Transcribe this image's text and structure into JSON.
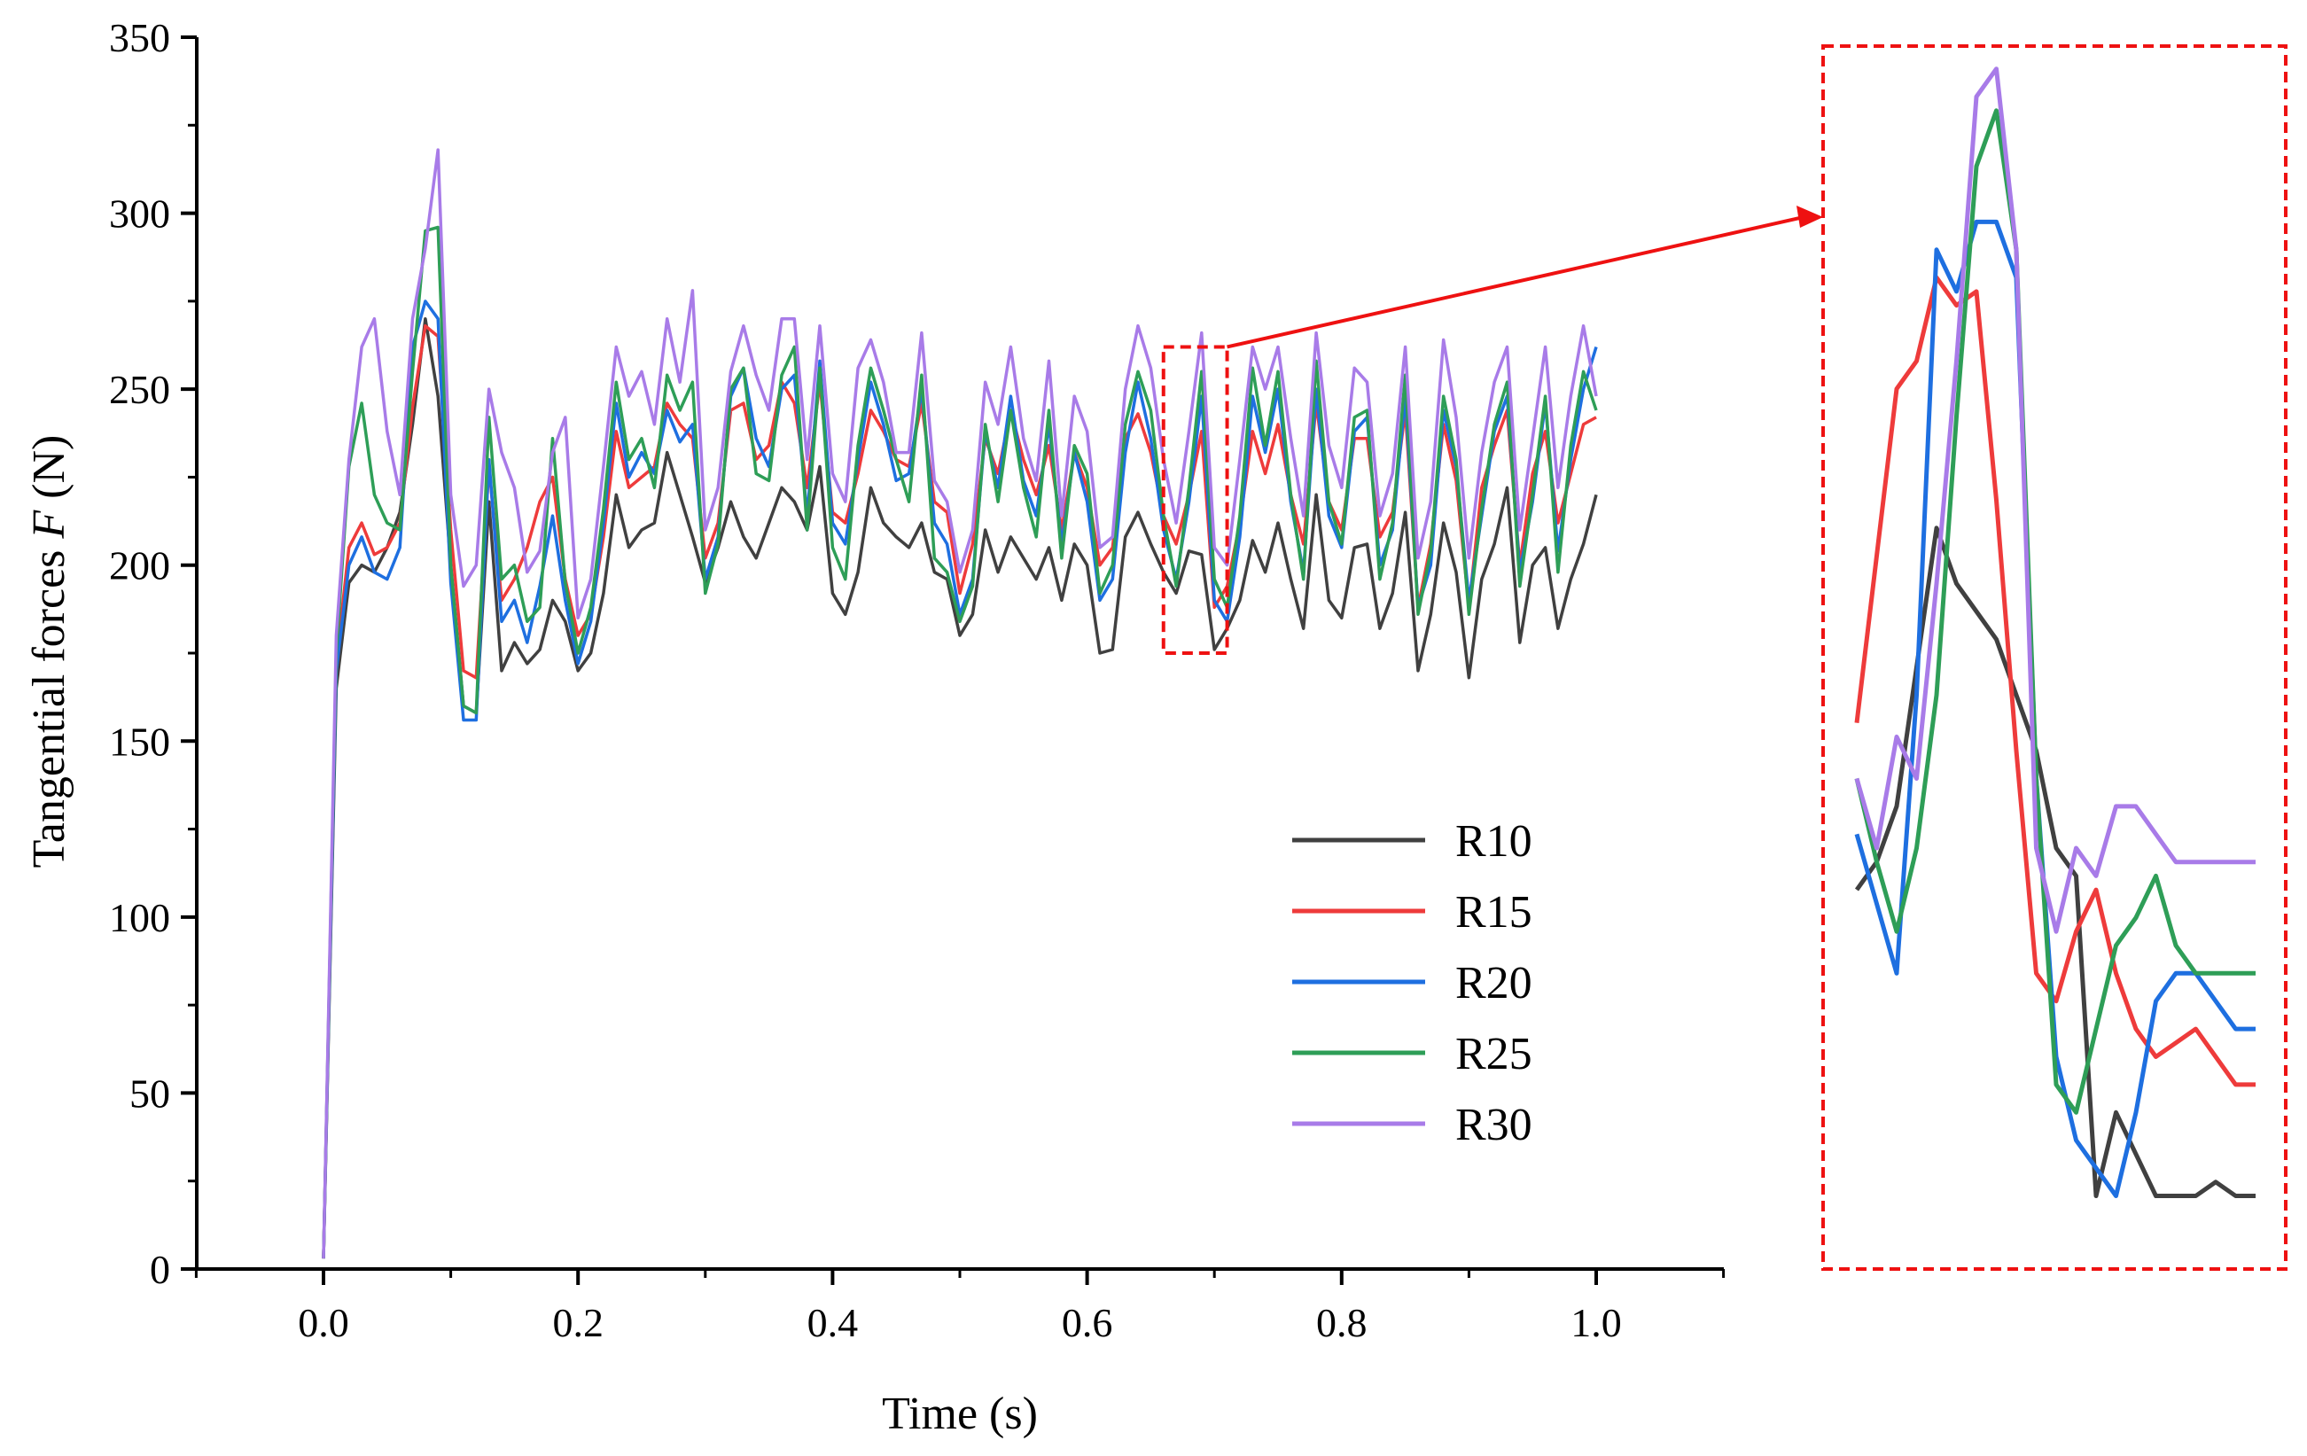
{
  "chart_data": [
    {
      "type": "line",
      "title": "",
      "xlabel": "Time (s)",
      "ylabel": "Tangential forces F (N)",
      "ylabel_parts": {
        "prefix": "Tangential forces ",
        "italic": "F",
        "suffix": " (N)"
      },
      "xlim": [
        -0.1,
        1.1
      ],
      "ylim": [
        0,
        350
      ],
      "xticks": [
        0.0,
        0.2,
        0.4,
        0.6,
        0.8,
        1.0
      ],
      "xtick_labels": [
        "0.0",
        "0.2",
        "0.4",
        "0.6",
        "0.8",
        "1.0"
      ],
      "yticks": [
        0,
        50,
        100,
        150,
        200,
        250,
        300,
        350
      ],
      "ytick_labels": [
        "0",
        "50",
        "100",
        "150",
        "200",
        "250",
        "300",
        "350"
      ],
      "grid": false,
      "legend_position": "bottom-right",
      "zoom_region": {
        "x": [
          0.66,
          0.71
        ],
        "y": [
          175,
          262
        ]
      },
      "x": [
        0.0,
        0.01,
        0.02,
        0.03,
        0.04,
        0.05,
        0.06,
        0.07,
        0.08,
        0.09,
        0.1,
        0.11,
        0.12,
        0.13,
        0.14,
        0.15,
        0.16,
        0.17,
        0.18,
        0.19,
        0.2,
        0.21,
        0.22,
        0.23,
        0.24,
        0.25,
        0.26,
        0.27,
        0.28,
        0.29,
        0.3,
        0.31,
        0.32,
        0.33,
        0.34,
        0.35,
        0.36,
        0.37,
        0.38,
        0.39,
        0.4,
        0.41,
        0.42,
        0.43,
        0.44,
        0.45,
        0.46,
        0.47,
        0.48,
        0.49,
        0.5,
        0.51,
        0.52,
        0.53,
        0.54,
        0.55,
        0.56,
        0.57,
        0.58,
        0.59,
        0.6,
        0.61,
        0.62,
        0.63,
        0.64,
        0.65,
        0.66,
        0.67,
        0.68,
        0.69,
        0.7,
        0.71,
        0.72,
        0.73,
        0.74,
        0.75,
        0.76,
        0.77,
        0.78,
        0.79,
        0.8,
        0.81,
        0.82,
        0.83,
        0.84,
        0.85,
        0.86,
        0.87,
        0.88,
        0.89,
        0.9,
        0.91,
        0.92,
        0.93,
        0.94,
        0.95,
        0.96,
        0.97,
        0.98,
        0.99,
        1.0
      ],
      "series": [
        {
          "name": "R10",
          "color": "#404040",
          "values": [
            3,
            165,
            195,
            200,
            198,
            205,
            215,
            240,
            270,
            248,
            200,
            160,
            158,
            218,
            170,
            178,
            172,
            176,
            190,
            184,
            170,
            175,
            192,
            220,
            205,
            210,
            212,
            232,
            220,
            208,
            195,
            205,
            218,
            208,
            202,
            212,
            222,
            218,
            210,
            228,
            192,
            186,
            198,
            222,
            212,
            208,
            205,
            212,
            198,
            196,
            180,
            186,
            210,
            198,
            208,
            202,
            196,
            205,
            190,
            206,
            200,
            175,
            176,
            208,
            215,
            206,
            198,
            192,
            204,
            203,
            176,
            182,
            190,
            207,
            198,
            212,
            196,
            182,
            220,
            190,
            185,
            205,
            206,
            182,
            192,
            215,
            170,
            186,
            212,
            198,
            168,
            196,
            206,
            222,
            178,
            200,
            205,
            182,
            196,
            206,
            220
          ]
        },
        {
          "name": "R15",
          "color": "#ee3b3b",
          "values": [
            3,
            172,
            205,
            212,
            203,
            205,
            212,
            245,
            268,
            265,
            210,
            170,
            168,
            228,
            190,
            196,
            205,
            218,
            225,
            196,
            180,
            186,
            208,
            238,
            222,
            225,
            228,
            246,
            240,
            236,
            202,
            212,
            244,
            246,
            230,
            234,
            252,
            246,
            222,
            252,
            215,
            212,
            226,
            244,
            238,
            230,
            228,
            246,
            218,
            215,
            192,
            206,
            236,
            226,
            244,
            230,
            220,
            234,
            210,
            232,
            222,
            200,
            205,
            236,
            243,
            232,
            214,
            206,
            220,
            238,
            188,
            194,
            212,
            238,
            226,
            240,
            220,
            206,
            246,
            218,
            210,
            236,
            236,
            208,
            215,
            244,
            188,
            206,
            240,
            224,
            188,
            222,
            234,
            244,
            200,
            226,
            238,
            212,
            226,
            240,
            242
          ]
        },
        {
          "name": "R20",
          "color": "#1e6fe0",
          "values": [
            3,
            170,
            200,
            208,
            198,
            196,
            205,
            262,
            275,
            270,
            195,
            156,
            156,
            230,
            184,
            190,
            178,
            194,
            214,
            190,
            172,
            184,
            212,
            246,
            225,
            232,
            226,
            244,
            235,
            240,
            196,
            208,
            248,
            256,
            236,
            228,
            250,
            254,
            214,
            258,
            212,
            206,
            230,
            252,
            240,
            224,
            226,
            250,
            212,
            206,
            186,
            196,
            238,
            222,
            248,
            224,
            214,
            240,
            206,
            232,
            218,
            190,
            196,
            232,
            252,
            236,
            210,
            196,
            218,
            248,
            190,
            184,
            208,
            248,
            232,
            250,
            218,
            198,
            250,
            214,
            205,
            238,
            242,
            200,
            210,
            248,
            188,
            200,
            244,
            228,
            190,
            214,
            238,
            248,
            198,
            218,
            246,
            204,
            230,
            250,
            262
          ]
        },
        {
          "name": "R25",
          "color": "#2e9e57",
          "values": [
            3,
            175,
            228,
            246,
            220,
            212,
            210,
            255,
            295,
            296,
            200,
            160,
            158,
            242,
            196,
            200,
            184,
            188,
            236,
            195,
            175,
            188,
            216,
            252,
            230,
            236,
            222,
            254,
            244,
            252,
            192,
            206,
            250,
            256,
            226,
            224,
            254,
            262,
            210,
            256,
            205,
            196,
            234,
            256,
            244,
            230,
            218,
            254,
            202,
            198,
            184,
            194,
            240,
            218,
            244,
            222,
            208,
            244,
            202,
            234,
            226,
            192,
            200,
            240,
            255,
            244,
            214,
            194,
            222,
            255,
            196,
            188,
            214,
            256,
            234,
            255,
            220,
            196,
            258,
            218,
            206,
            242,
            244,
            196,
            212,
            254,
            186,
            204,
            248,
            230,
            186,
            216,
            240,
            252,
            194,
            220,
            248,
            198,
            234,
            255,
            244
          ]
        },
        {
          "name": "R30",
          "color": "#a87be8",
          "values": [
            3,
            180,
            230,
            262,
            270,
            238,
            220,
            270,
            290,
            318,
            220,
            194,
            200,
            250,
            232,
            222,
            198,
            204,
            232,
            242,
            185,
            196,
            228,
            262,
            248,
            255,
            240,
            270,
            252,
            278,
            210,
            222,
            255,
            268,
            254,
            244,
            270,
            270,
            230,
            268,
            226,
            218,
            256,
            264,
            252,
            232,
            232,
            266,
            224,
            218,
            198,
            210,
            252,
            240,
            262,
            236,
            224,
            258,
            214,
            248,
            238,
            205,
            208,
            250,
            268,
            256,
            230,
            212,
            238,
            266,
            205,
            200,
            230,
            262,
            250,
            262,
            236,
            214,
            266,
            234,
            222,
            256,
            252,
            214,
            226,
            262,
            202,
            218,
            264,
            242,
            202,
            232,
            252,
            262,
            210,
            236,
            262,
            222,
            248,
            268,
            248
          ]
        }
      ]
    },
    {
      "type": "line",
      "title": "",
      "xlabel": "",
      "ylabel": "",
      "note_visible": false,
      "xlim": [
        0.66,
        0.71
      ],
      "ylim": [
        175,
        262
      ],
      "grid": false,
      "x": [
        0.66,
        0.6625,
        0.665,
        0.6675,
        0.67,
        0.6725,
        0.675,
        0.6775,
        0.68,
        0.6825,
        0.685,
        0.6875,
        0.69,
        0.6925,
        0.695,
        0.6975,
        0.7,
        0.7025,
        0.705,
        0.7075,
        0.71
      ],
      "series": [
        {
          "name": "R10",
          "color": "#404040",
          "values": [
            202,
            204,
            208,
            218,
            228,
            224,
            222,
            220,
            216,
            212,
            205,
            203,
            180,
            186,
            183,
            180,
            180,
            180,
            181,
            180,
            180
          ]
        },
        {
          "name": "R15",
          "color": "#ee3b3b",
          "values": [
            214,
            226,
            238,
            240,
            246,
            244,
            245,
            230,
            212,
            196,
            194,
            199,
            202,
            196,
            192,
            190,
            191,
            192,
            190,
            188,
            188
          ]
        },
        {
          "name": "R20",
          "color": "#1e6fe0",
          "values": [
            206,
            201,
            196,
            216,
            248,
            245,
            250,
            250,
            246,
            210,
            190,
            184,
            182,
            180,
            186,
            194,
            196,
            196,
            194,
            192,
            192
          ]
        },
        {
          "name": "R25",
          "color": "#2e9e57",
          "values": [
            210,
            204,
            199,
            205,
            216,
            236,
            254,
            258,
            248,
            210,
            188,
            186,
            192,
            198,
            200,
            203,
            198,
            196,
            196,
            196,
            196
          ]
        },
        {
          "name": "R30",
          "color": "#a87be8",
          "values": [
            210,
            205,
            213,
            210,
            224,
            240,
            259,
            261,
            248,
            205,
            199,
            205,
            203,
            208,
            208,
            206,
            204,
            204,
            204,
            204,
            204
          ]
        }
      ]
    }
  ]
}
